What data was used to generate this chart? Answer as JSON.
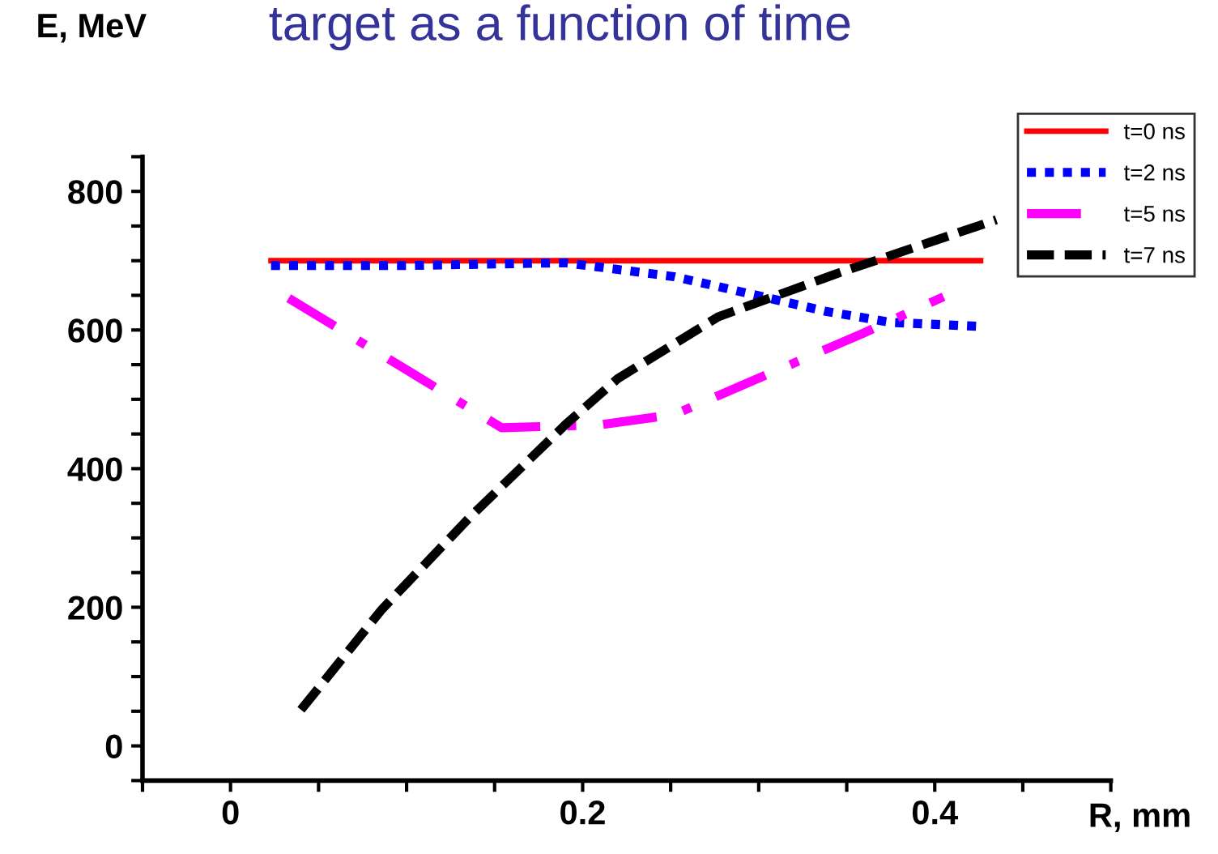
{
  "chart_data": {
    "type": "line",
    "title": "target as a function of time",
    "xlabel": "R, mm",
    "ylabel": "E, MeV",
    "xlim": [
      -0.05,
      0.5
    ],
    "ylim": [
      -50,
      850
    ],
    "xticks": [
      {
        "value": -0.05,
        "label": null
      },
      0,
      {
        "value": 0.05,
        "label": null
      },
      {
        "value": 0.1,
        "label": null
      },
      {
        "value": 0.15,
        "label": null
      },
      0.2,
      {
        "value": 0.25,
        "label": null
      },
      {
        "value": 0.3,
        "label": null
      },
      {
        "value": 0.35,
        "label": null
      },
      0.4,
      {
        "value": 0.45,
        "label": null
      },
      {
        "value": 0.5,
        "label": null
      }
    ],
    "yticks": [
      {
        "value": -50,
        "label": null
      },
      0,
      {
        "value": 50,
        "label": null
      },
      {
        "value": 100,
        "label": null
      },
      {
        "value": 150,
        "label": null
      },
      200,
      {
        "value": 250,
        "label": null
      },
      {
        "value": 300,
        "label": null
      },
      {
        "value": 350,
        "label": null
      },
      400,
      {
        "value": 450,
        "label": null
      },
      {
        "value": 500,
        "label": null
      },
      {
        "value": 550,
        "label": null
      },
      600,
      {
        "value": 650,
        "label": null
      },
      {
        "value": 700,
        "label": null
      },
      {
        "value": 750,
        "label": null
      },
      800,
      {
        "value": 850,
        "label": null
      }
    ],
    "grid": false,
    "legend": "top right",
    "series": [
      {
        "name": "t=0 ns",
        "color": "#ff0000",
        "line_style": "solid",
        "x": [
          0.023,
          0.426
        ],
        "values": [
          700,
          700
        ]
      },
      {
        "name": "t=2 ns",
        "color": "#0000ff",
        "line_style": "dotted",
        "x": [
          0.023,
          0.1,
          0.19,
          0.252,
          0.292,
          0.338,
          0.375,
          0.427
        ],
        "values": [
          693,
          693,
          697,
          677,
          654,
          627,
          611,
          605
        ]
      },
      {
        "name": "t=5 ns",
        "color": "#ff00ff",
        "line_style": "dashdot",
        "x": [
          0.033,
          0.154,
          0.209,
          0.252,
          0.359,
          0.405
        ],
        "values": [
          646,
          459,
          463,
          478,
          595,
          648
        ]
      },
      {
        "name": "t=7 ns",
        "color": "#000000",
        "line_style": "dashed",
        "x": [
          0.04,
          0.086,
          0.136,
          0.19,
          0.22,
          0.277,
          0.344,
          0.435
        ],
        "values": [
          52,
          197,
          330,
          463,
          530,
          619,
          681,
          759
        ]
      }
    ]
  }
}
